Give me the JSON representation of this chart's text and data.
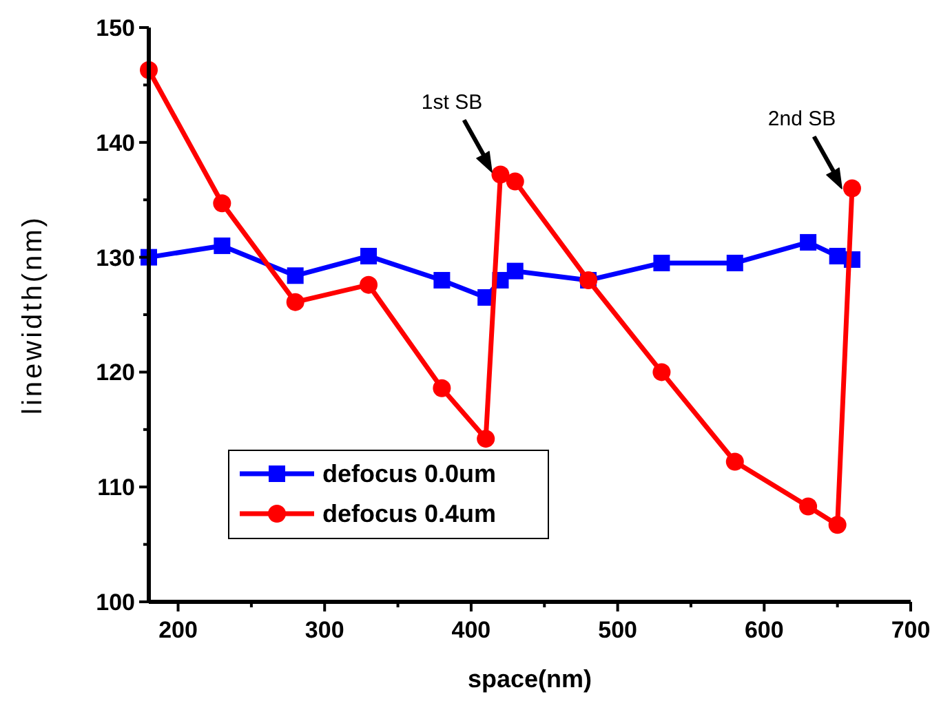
{
  "chart_data": {
    "type": "line",
    "xlabel": "space(nm)",
    "ylabel": "linewidth(nm)",
    "x": [
      180,
      230,
      280,
      330,
      380,
      410,
      420,
      430,
      480,
      530,
      580,
      630,
      650,
      660
    ],
    "xlim": [
      180,
      700
    ],
    "xticks": [
      200,
      {
        "value": 250,
        "label": null
      },
      300,
      {
        "value": 350,
        "label": null
      },
      400,
      {
        "value": 450,
        "label": null
      },
      500,
      {
        "value": 550,
        "label": null
      },
      600,
      {
        "value": 650,
        "label": null
      },
      700
    ],
    "ylim": [
      100,
      150
    ],
    "yticks": [
      100,
      {
        "value": 105,
        "label": null
      },
      110,
      {
        "value": 115,
        "label": null
      },
      120,
      {
        "value": 125,
        "label": null
      },
      130,
      {
        "value": 135,
        "label": null
      },
      140,
      {
        "value": 145,
        "label": null
      },
      150
    ],
    "series": [
      {
        "name": "defocus 0.0um",
        "color": "#0000ff",
        "marker": "square",
        "values": [
          130,
          131,
          128.4,
          130.1,
          128,
          126.5,
          128,
          128.8,
          128,
          129.5,
          129.5,
          131.3,
          130.1,
          129.8
        ]
      },
      {
        "name": "defocus 0.4um",
        "color": "#ff0000",
        "marker": "circle",
        "values": [
          146.3,
          134.7,
          126.1,
          127.6,
          118.6,
          114.2,
          137.2,
          136.6,
          128,
          120,
          112.2,
          108.3,
          106.7,
          136
        ]
      }
    ],
    "annotations": [
      "1st SB",
      "2nd SB"
    ],
    "legend": "bottom left",
    "grid": false
  }
}
